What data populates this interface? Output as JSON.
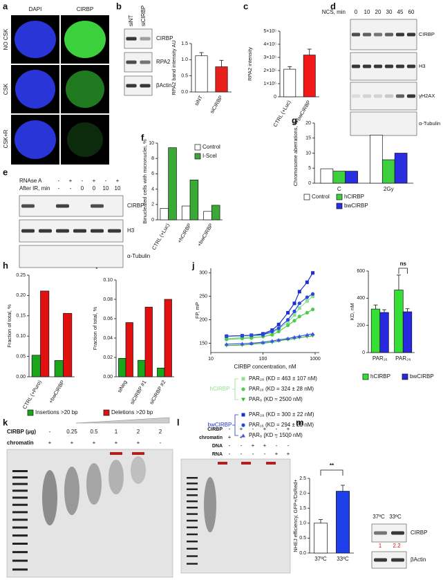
{
  "panel_labels": [
    "a",
    "b",
    "c",
    "d",
    "e",
    "f",
    "g",
    "h",
    "i",
    "j",
    "k",
    "l",
    "m"
  ],
  "a": {
    "columns": [
      "DAPI",
      "CIRBP"
    ],
    "rows": [
      "NO CSK",
      "CSK",
      "CSK+R"
    ]
  },
  "b_blot": {
    "lanes": [
      "siNT",
      "siCIRBP"
    ],
    "bands": [
      "CIRBP",
      "RPA2",
      "βActin"
    ]
  },
  "d_blot": {
    "header": "NCS, min",
    "lanes": [
      "0",
      "10",
      "20",
      "30",
      "45",
      "60"
    ],
    "bands": [
      "CIRBP",
      "H3",
      "γH2AX",
      "α-Tubulin"
    ]
  },
  "e_blot": {
    "rows": [
      {
        "label": "RNAse A",
        "marks": [
          "-",
          "+",
          "-",
          "+",
          "-",
          "+"
        ]
      },
      {
        "label": "After IR, min",
        "marks": [
          "-",
          "-",
          "0",
          "0",
          "10",
          "10"
        ]
      }
    ],
    "bands": [
      "CIRBP",
      "H3",
      "α-Tubulin"
    ]
  },
  "k_gel": {
    "rows": [
      {
        "label": "CIRBP (μg)",
        "marks": [
          "-",
          "0.25",
          "0.5",
          "1",
          "2",
          "2"
        ]
      },
      {
        "label": "chromatin",
        "marks": [
          "+",
          "+",
          "+",
          "+",
          "+",
          "-"
        ]
      }
    ]
  },
  "l_gel": {
    "rows": [
      {
        "label": "CIRBP",
        "marks": [
          "-",
          "+",
          "-",
          "+",
          "-",
          "+"
        ]
      },
      {
        "label": "chromatin",
        "marks": [
          "+",
          "+",
          "-",
          "-",
          "-",
          "-"
        ]
      },
      {
        "label": "DNA",
        "marks": [
          "-",
          "-",
          "+",
          "+",
          "-",
          "-"
        ]
      },
      {
        "label": "RNA",
        "marks": [
          "-",
          "-",
          "-",
          "-",
          "+",
          "+"
        ]
      }
    ]
  },
  "m_blot": {
    "lanes": [
      "37ºC",
      "33ºC"
    ],
    "bands": [
      "CIRBP",
      "βActin"
    ],
    "ratios": [
      "1",
      "2.2"
    ]
  },
  "chart_data": [
    {
      "type": "bar",
      "ylabel": "RPA2 band intensity AU",
      "categories": [
        "siNT",
        "siCIRBP"
      ],
      "values": [
        1.12,
        0.78
      ],
      "errors": [
        0.1,
        0.2
      ],
      "colors": [
        "#ffffff",
        "#e8201c"
      ],
      "ylim": [
        0,
        1.5
      ],
      "yticks": [
        {
          "value": 0,
          "label": "0.0"
        },
        {
          "value": 0.5,
          "label": "0.5"
        },
        {
          "value": 1,
          "label": "1.0"
        },
        {
          "value": 1.5,
          "label": "1.5"
        }
      ]
    },
    {
      "type": "bar",
      "ylabel": "RPA2 intensity",
      "categories": [
        "CTRL (+Luc)",
        "+bwCIRBP"
      ],
      "values": [
        210000,
        318000
      ],
      "errors": [
        20000,
        45000
      ],
      "colors": [
        "#ffffff",
        "#f01818"
      ],
      "ylim": [
        0,
        500000
      ],
      "yticks": [
        0,
        {
          "value": 100000,
          "label": "1×10⁵"
        },
        {
          "value": 200000,
          "label": "2×10⁵"
        },
        {
          "value": 300000,
          "label": "3×10⁵"
        },
        {
          "value": 400000,
          "label": "4×10⁵"
        },
        {
          "value": 500000,
          "label": "5×10⁵"
        }
      ]
    },
    {
      "type": "bar",
      "ylabel": "Binucleated cells with micronuclei, %",
      "categories": [
        "CTRL (+Luc)",
        "+hCIRBP",
        "+bwCIRBP"
      ],
      "series": [
        {
          "name": "Control",
          "color": "#ffffff",
          "values": [
            1.5,
            1.8,
            1.1
          ]
        },
        {
          "name": "I-SceI",
          "color": "#3aa935",
          "values": [
            9.4,
            5.2,
            1.9
          ]
        }
      ],
      "ylim": [
        0,
        10
      ],
      "yticks": [
        0,
        2,
        4,
        6,
        8,
        10
      ]
    },
    {
      "type": "bar",
      "ylabel": "Chromosome aberrations, %",
      "categories": [
        "C",
        "2Gy"
      ],
      "series": [
        {
          "name": "Control",
          "color": "#ffffff",
          "values": [
            4.8,
            16
          ]
        },
        {
          "name": "hCIRBP",
          "color": "#3ecf3e",
          "values": [
            4,
            7.8
          ]
        },
        {
          "name": "bwCIRBP",
          "color": "#2a2ee0",
          "values": [
            4,
            10
          ]
        }
      ],
      "ylim": [
        0,
        20
      ],
      "yticks": [
        0,
        5,
        10,
        15,
        20
      ]
    },
    {
      "type": "bar",
      "ylabel": "Fraction of total, %",
      "categories": [
        "CTRL (+Puro)",
        "+bwCIRBP"
      ],
      "series": [
        {
          "name": "Insertions >20 bp",
          "color": "#1aa51a",
          "values": [
            0.053,
            0.04
          ]
        },
        {
          "name": "Deletions >20 bp",
          "color": "#e01010",
          "values": [
            0.211,
            0.156
          ]
        }
      ],
      "ylim": [
        0,
        0.25
      ],
      "yticks": [
        {
          "value": 0,
          "label": "0.00"
        },
        {
          "value": 0.05,
          "label": "0.05"
        },
        {
          "value": 0.1,
          "label": "0.10"
        },
        {
          "value": 0.15,
          "label": "0.15"
        },
        {
          "value": 0.2,
          "label": "0.20"
        },
        {
          "value": 0.25,
          "label": "0.25"
        }
      ]
    },
    {
      "type": "bar",
      "ylabel": "Fraction of total, %",
      "categories": [
        "siNeg",
        "siCIRBP #1",
        "siCIRBP #2"
      ],
      "series": [
        {
          "color": "#1aa51a",
          "values": [
            0.019,
            0.017,
            0.009
          ]
        },
        {
          "color": "#e01010",
          "values": [
            0.056,
            0.072,
            0.08
          ]
        }
      ],
      "ylim": [
        0,
        0.1
      ],
      "yticks": [
        {
          "value": 0,
          "label": "0.00"
        },
        {
          "value": 0.02,
          "label": "0.02"
        },
        {
          "value": 0.04,
          "label": "0.04"
        },
        {
          "value": 0.06,
          "label": "0.06"
        },
        {
          "value": 0.08,
          "label": "0.08"
        },
        {
          "value": 0.1,
          "label": "0.10"
        }
      ]
    },
    {
      "type": "line",
      "xscale": "log",
      "xlabel": "CIRBP concentration, nM",
      "ylabel": "FP, mP",
      "x": [
        20,
        40,
        60,
        100,
        150,
        200,
        300,
        400,
        500,
        700,
        900
      ],
      "xlim": [
        10,
        1200
      ],
      "xticks": [
        10,
        100,
        1000
      ],
      "ylim": [
        130,
        310
      ],
      "yticks": [
        150,
        200,
        250,
        300
      ],
      "legend_groups": [
        "hCIRBP",
        "bwCIRBP"
      ],
      "series": [
        {
          "name": "PAR₂₈ (KD = 463 ± 107 nM)",
          "color": "#8fe08f",
          "marker": "square",
          "values": [
            160,
            162,
            164,
            168,
            172,
            180,
            195,
            210,
            225,
            240,
            250
          ]
        },
        {
          "name": "PAR₁₆ (KD = 324 ± 28 nM)",
          "color": "#4ccc4c",
          "marker": "circle",
          "values": [
            158,
            160,
            161,
            164,
            168,
            175,
            188,
            198,
            207,
            215,
            222
          ]
        },
        {
          "name": "PAR₈ (KD ≈ 2500 nM)",
          "color": "#33b833",
          "marker": "triangle-down",
          "values": [
            145,
            146,
            148,
            150,
            152,
            155,
            158,
            160,
            162,
            164,
            166
          ]
        },
        {
          "name": "PAR₂₈ (KD = 300 ± 22 nM)",
          "color": "#1a2fd0",
          "marker": "square",
          "values": [
            165,
            166,
            167,
            170,
            178,
            190,
            215,
            235,
            260,
            280,
            300
          ]
        },
        {
          "name": "PAR₁₆ (KD = 294 ± 21 nM)",
          "color": "#2a45e0",
          "marker": "circle",
          "values": [
            165,
            166,
            167,
            168,
            175,
            182,
            200,
            218,
            235,
            248,
            255
          ]
        },
        {
          "name": "PAR₈ (KD ≈ 1500 nM)",
          "color": "#3a55e8",
          "marker": "triangle",
          "values": [
            148,
            149,
            150,
            152,
            155,
            157,
            160,
            163,
            165,
            168,
            170
          ]
        }
      ]
    },
    {
      "type": "bar",
      "ylabel": "KD, nM",
      "categories": [
        "PAR₁₆",
        "PAR₂₈"
      ],
      "series": [
        {
          "name": "hCIRBP",
          "color": "#33e033",
          "values": [
            320,
            460
          ],
          "errors": [
            30,
            110
          ]
        },
        {
          "name": "bwCIRBP",
          "color": "#2828e0",
          "values": [
            295,
            300
          ],
          "errors": [
            20,
            22
          ]
        }
      ],
      "ylim": [
        0,
        600
      ],
      "yticks": [
        0,
        200,
        400,
        600
      ],
      "annotation": "ns"
    },
    {
      "type": "bar",
      "ylabel": "NHEJ efficiency, GFP+/DsRed+",
      "categories": [
        "37ºC",
        "33ºC"
      ],
      "values": [
        1.0,
        2.07
      ],
      "errors": [
        0.12,
        0.2
      ],
      "colors": [
        "#ffffff",
        "#1d3ee8"
      ],
      "ylim": [
        0,
        2.5
      ],
      "yticks": [
        {
          "value": 0,
          "label": "0.0"
        },
        {
          "value": 0.5,
          "label": "0.5"
        },
        {
          "value": 1,
          "label": "1.0"
        },
        {
          "value": 1.5,
          "label": "1.5"
        },
        {
          "value": 2,
          "label": "2.0"
        },
        {
          "value": 2.5,
          "label": "2.5"
        }
      ],
      "annotation": "**"
    }
  ]
}
